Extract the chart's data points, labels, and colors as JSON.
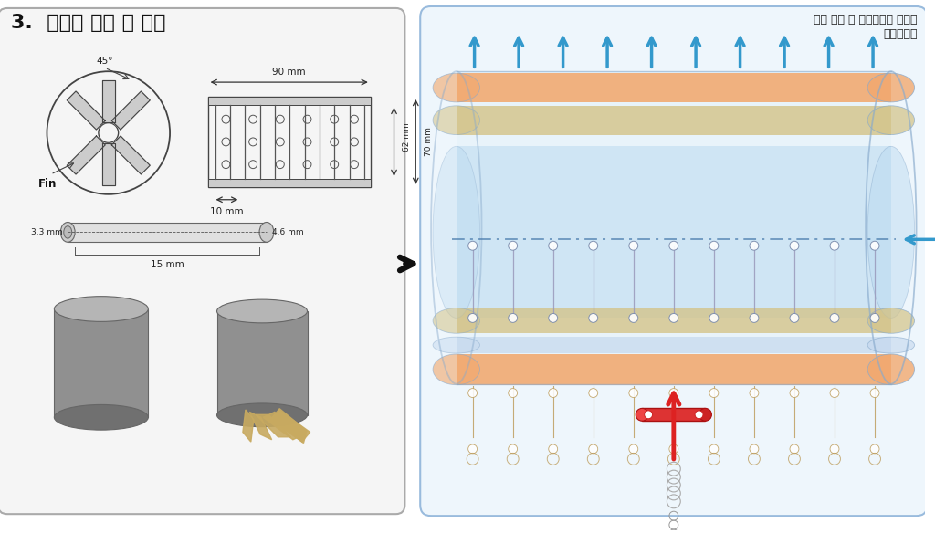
{
  "bg_color": "#ffffff",
  "title_text": "3.  모델링 소개 및 이론",
  "subtitle_line1": "전자 냉각 및 히트파이프 연구실",
  "subtitle_line2": "기계공학부",
  "layer_orange": "#f2a86e",
  "layer_tan": "#d4c48a",
  "layer_blue_light": "#b8d8f0",
  "arrow_blue": "#3399cc",
  "arrow_red": "#dd2222",
  "dashed_line_color": "#4477aa",
  "spring_color": "#bb9955",
  "left_bg": "#f5f5f5",
  "right_bg": "#eef6fc"
}
